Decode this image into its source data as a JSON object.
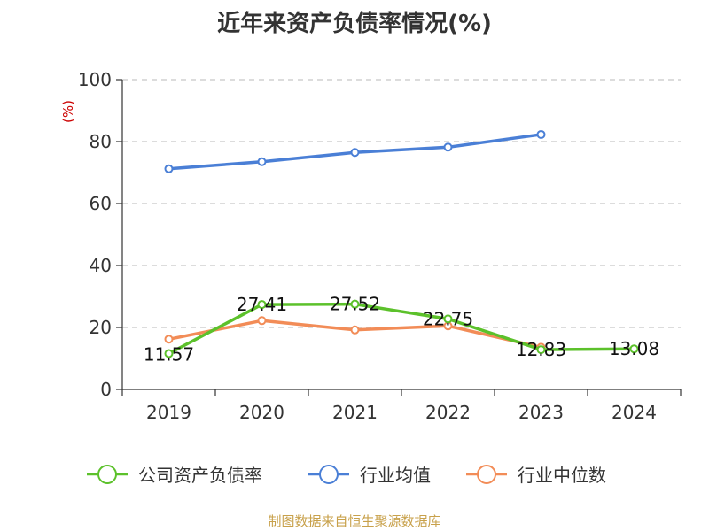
{
  "title": "近年来资产负债率情况(%)",
  "source_note": "制图数据来自恒生聚源数据库",
  "chart_data": {
    "type": "line",
    "title": "近年来资产负债率情况(%)",
    "ylabel": "(%)",
    "xlabel": "",
    "categories": [
      "2019",
      "2020",
      "2021",
      "2022",
      "2023",
      "2024"
    ],
    "ylim": [
      0,
      100
    ],
    "yticks": [
      0,
      20,
      40,
      60,
      80,
      100
    ],
    "grid": true,
    "legend_position": "bottom",
    "series": [
      {
        "name": "公司资产负债率",
        "color": "#5cc12b",
        "values": [
          11.57,
          27.41,
          27.52,
          22.75,
          12.83,
          13.08
        ],
        "labels": [
          "11.57",
          "27.41",
          "27.52",
          "22.75",
          "12.83",
          "13.08"
        ],
        "show_labels": true
      },
      {
        "name": "行业均值",
        "color": "#4a7fd6",
        "values": [
          71.2,
          73.5,
          76.5,
          78.2,
          82.3,
          null
        ],
        "show_labels": false
      },
      {
        "name": "行业中位数",
        "color": "#f28c57",
        "values": [
          16.2,
          22.2,
          19.2,
          20.5,
          13.6,
          null
        ],
        "show_labels": false
      }
    ]
  }
}
